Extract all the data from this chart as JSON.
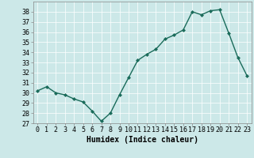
{
  "x": [
    0,
    1,
    2,
    3,
    4,
    5,
    6,
    7,
    8,
    9,
    10,
    11,
    12,
    13,
    14,
    15,
    16,
    17,
    18,
    19,
    20,
    21,
    22,
    23
  ],
  "y": [
    30.2,
    30.6,
    30.0,
    29.8,
    29.4,
    29.1,
    28.2,
    27.2,
    28.0,
    29.8,
    31.5,
    33.2,
    33.8,
    34.3,
    35.3,
    35.7,
    36.2,
    38.0,
    37.7,
    38.1,
    38.2,
    35.9,
    33.5,
    31.7
  ],
  "line_color": "#1a6b5a",
  "marker": "D",
  "marker_size": 2,
  "bg_color": "#cce8e8",
  "grid_color": "#ffffff",
  "xlabel": "Humidex (Indice chaleur)",
  "ylim": [
    27,
    39
  ],
  "xlim": [
    -0.5,
    23.5
  ],
  "yticks": [
    27,
    28,
    29,
    30,
    31,
    32,
    33,
    34,
    35,
    36,
    37,
    38
  ],
  "xtick_labels": [
    "0",
    "1",
    "2",
    "3",
    "4",
    "5",
    "6",
    "7",
    "8",
    "9",
    "10",
    "11",
    "12",
    "13",
    "14",
    "15",
    "16",
    "17",
    "18",
    "19",
    "20",
    "21",
    "22",
    "23"
  ],
  "tick_fontsize": 6,
  "xlabel_fontsize": 7,
  "line_width": 1.0,
  "grid_linewidth": 0.5,
  "spine_color": "#888888"
}
